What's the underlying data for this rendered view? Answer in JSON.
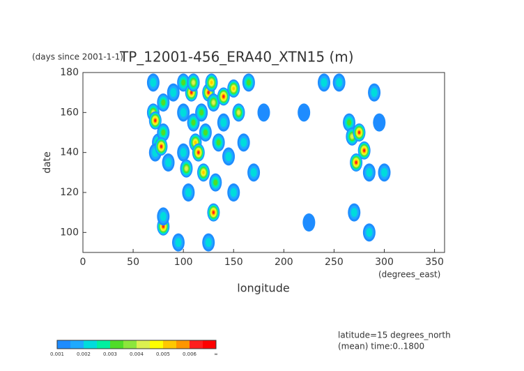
{
  "chart_data": {
    "type": "contour",
    "title": "TP_12001-456_ERA40_XTN15 (m)",
    "y_units": "(days since 2001-1-1)",
    "x_label": "longitude",
    "x_units": "(degrees_east)",
    "y_label": "date",
    "notes": [
      "latitude=15 degrees_north",
      "(mean) time:0..1800"
    ],
    "xlim": [
      0,
      360
    ],
    "ylim": [
      90,
      180
    ],
    "xticks": [
      0,
      50,
      100,
      150,
      200,
      250,
      300,
      350
    ],
    "yticks": [
      100,
      120,
      140,
      160,
      180
    ],
    "x": [
      70,
      70,
      72,
      75,
      72,
      80,
      80,
      78,
      80,
      80,
      85,
      90,
      100,
      100,
      100,
      103,
      105,
      108,
      110,
      110,
      112,
      115,
      118,
      120,
      122,
      125,
      128,
      130,
      130,
      132,
      135,
      140,
      140,
      145,
      150,
      150,
      155,
      160,
      165,
      170,
      180,
      95,
      125,
      225,
      220,
      240,
      265,
      268,
      272,
      275,
      280,
      285,
      270,
      290,
      295,
      300,
      285,
      255
    ],
    "y": [
      175,
      160,
      156,
      145,
      140,
      165,
      150,
      143,
      103,
      108,
      135,
      170,
      175,
      160,
      140,
      132,
      120,
      170,
      175,
      155,
      145,
      140,
      160,
      130,
      150,
      170,
      175,
      165,
      110,
      125,
      145,
      168,
      155,
      138,
      172,
      120,
      160,
      145,
      175,
      130,
      160,
      95,
      95,
      105,
      160,
      175,
      155,
      148,
      135,
      150,
      141,
      130,
      110,
      170,
      155,
      130,
      100,
      175
    ],
    "values": [
      0.002,
      0.004,
      0.006,
      0.003,
      0.002,
      0.003,
      0.003,
      0.006,
      0.006,
      0.002,
      0.002,
      0.002,
      0.003,
      0.002,
      0.002,
      0.004,
      0.002,
      0.006,
      0.004,
      0.003,
      0.005,
      0.006,
      0.003,
      0.005,
      0.003,
      0.006,
      0.005,
      0.004,
      0.006,
      0.003,
      0.003,
      0.006,
      0.002,
      0.002,
      0.005,
      0.002,
      0.004,
      0.002,
      0.003,
      0.002,
      0.001,
      0.002,
      0.002,
      0.001,
      0.001,
      0.002,
      0.003,
      0.004,
      0.006,
      0.006,
      0.006,
      0.002,
      0.002,
      0.002,
      0.001,
      0.002,
      0.002,
      0.002
    ],
    "colorbar": {
      "levels": [
        0.001,
        0.002,
        0.003,
        0.004,
        0.005,
        0.006
      ],
      "end_label": "∞",
      "colors": [
        "#1e8cff",
        "#1eaaff",
        "#00dcdc",
        "#00f0a0",
        "#50dc28",
        "#8ce63c",
        "#dcf050",
        "#ffff00",
        "#ffc800",
        "#ff9600",
        "#ff1e1e",
        "#ff0000"
      ]
    }
  }
}
